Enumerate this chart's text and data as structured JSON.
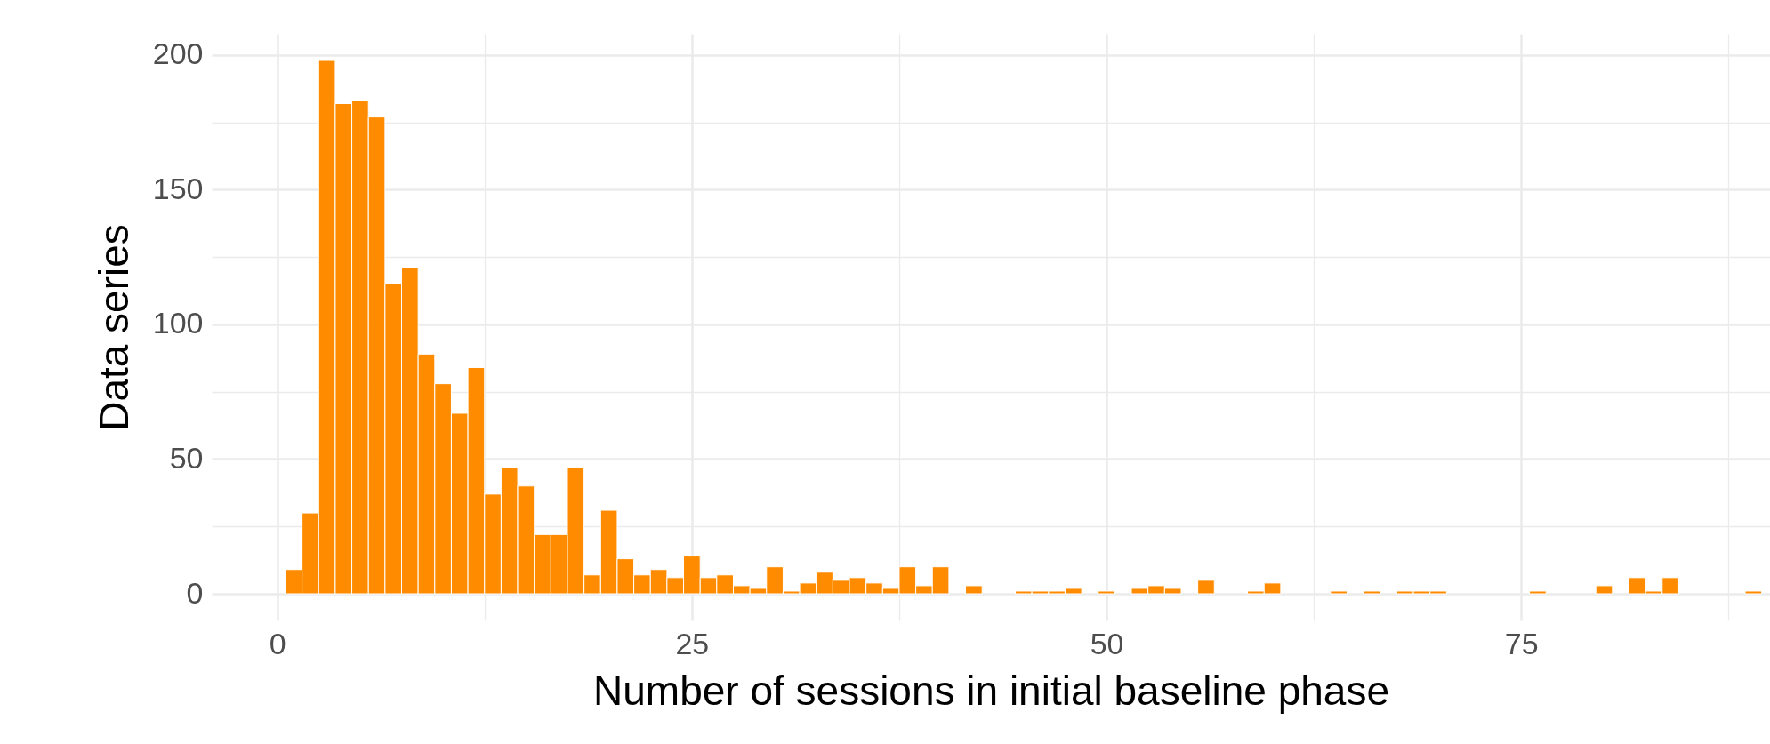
{
  "chart_data": {
    "type": "histogram",
    "xlabel": "Number of sessions in initial baseline phase",
    "ylabel": "Data series",
    "color": "#ff8c00",
    "bins": [
      0.5,
      1.5,
      2.5,
      3.5,
      4.5,
      5.5,
      6.5,
      7.5,
      8.5,
      9.5,
      10.5,
      11.5,
      12.5,
      13.5,
      14.5,
      15.5,
      16.5,
      17.5,
      18.5,
      19.5,
      20.5,
      21.5,
      22.5,
      23.5,
      24.5,
      25.5,
      26.5,
      27.5,
      28.5,
      29.5,
      30.5,
      31.5,
      32.5,
      33.5,
      34.5,
      35.5,
      36.5,
      37.5,
      38.5,
      39.5,
      40.5,
      41.5,
      42.5,
      43.5,
      44.5,
      45.5,
      46.5,
      47.5,
      48.5,
      49.5,
      50.5,
      51.5,
      52.5,
      53.5,
      54.5,
      55.5,
      56.5,
      57.5,
      58.5,
      59.5,
      60.5,
      61.5,
      62.5,
      63.5,
      64.5,
      65.5,
      66.5,
      67.5,
      68.5,
      69.5,
      70.5,
      71.5,
      72.5,
      73.5,
      74.5,
      75.5,
      76.5,
      77.5,
      78.5,
      79.5,
      80.5,
      81.5,
      82.5,
      83.5,
      84.5,
      85.5,
      86.5,
      87.5,
      88.5,
      89.5
    ],
    "values": [
      9,
      30,
      198,
      182,
      183,
      177,
      115,
      121,
      89,
      78,
      67,
      84,
      37,
      47,
      40,
      22,
      22,
      47,
      7,
      31,
      13,
      7,
      9,
      6,
      14,
      6,
      7,
      3,
      2,
      10,
      1,
      4,
      8,
      5,
      6,
      4,
      2,
      10,
      3,
      10,
      0,
      3,
      0,
      0,
      1,
      1,
      1,
      2,
      0,
      1,
      0,
      2,
      3,
      2,
      0,
      5,
      0,
      0,
      1,
      4,
      0,
      0,
      0,
      1,
      0,
      1,
      0,
      1,
      1,
      1,
      0,
      0,
      0,
      0,
      0,
      1,
      0,
      0,
      0,
      3,
      0,
      6,
      1,
      6,
      0,
      0,
      0,
      0,
      1
    ],
    "xlim": [
      -3.95,
      90
    ],
    "xticks": [
      0,
      {
        "value": 12.5,
        "label": null
      },
      25,
      {
        "value": 37.5,
        "label": null
      },
      50,
      {
        "value": 62.5,
        "label": null
      },
      75,
      {
        "value": 87.5,
        "label": null
      }
    ],
    "ylim": [
      -9.9,
      207.9
    ],
    "yticks": [
      0,
      {
        "value": 25,
        "label": null
      },
      50,
      {
        "value": 75,
        "label": null
      },
      100,
      {
        "value": 125,
        "label": null
      },
      150,
      {
        "value": 175,
        "label": null
      },
      200
    ],
    "grid": true
  }
}
